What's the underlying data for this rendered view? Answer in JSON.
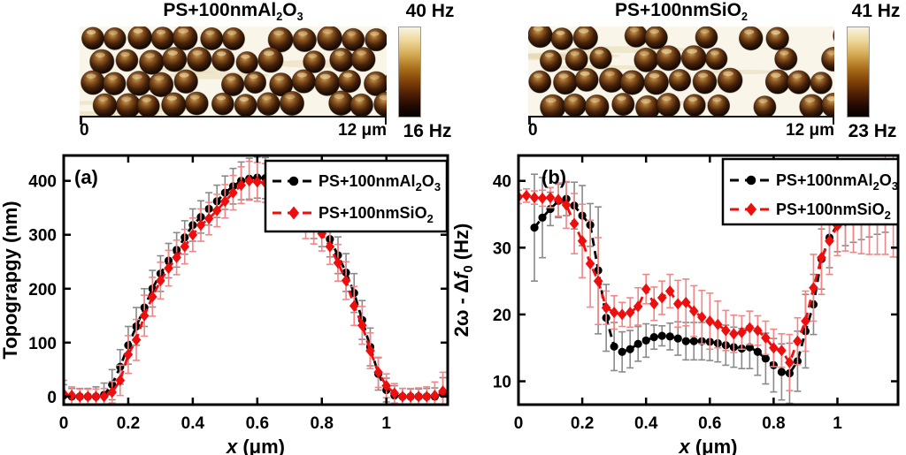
{
  "figure": {
    "afm_panels": [
      {
        "id": "al2o3",
        "title_parts": [
          {
            "t": "PS+100nmAl"
          },
          {
            "t": "2",
            "sub": true
          },
          {
            "t": "O"
          },
          {
            "t": "3",
            "sub": true
          }
        ],
        "colorbar_max": "40 Hz",
        "colorbar_min": "16 Hz",
        "scale_zero": "0",
        "scale_end": "12 μm"
      },
      {
        "id": "sio2",
        "title_parts": [
          {
            "t": "PS+100nmSiO"
          },
          {
            "t": "2",
            "sub": true
          }
        ],
        "colorbar_max": "41 Hz",
        "colorbar_min": "23 Hz",
        "scale_zero": "0",
        "scale_end": "12 μm"
      }
    ],
    "colors": {
      "series_black": "#000000",
      "series_red": "#ee0e0e",
      "err_black": "#8a8a8a",
      "err_red": "#f28585",
      "afm_background": "#f9f5e8",
      "colorbar_top": "#f8f3e1",
      "colorbar_bottom": "#060100"
    }
  },
  "chart_data": [
    {
      "type": "line",
      "panel_label": "(a)",
      "xlabel_parts": [
        {
          "t": "x",
          "italic": true
        },
        {
          "t": " (μm)"
        }
      ],
      "ylabel_parts": [
        {
          "t": "Topograpgy (nm)"
        }
      ],
      "xlim": [
        0,
        1.19
      ],
      "ylim": [
        -15,
        447
      ],
      "xticks": [
        0,
        0.2,
        0.4,
        0.6,
        0.8,
        1
      ],
      "xtick_labels": [
        "0",
        "0.2",
        "0.4",
        "0.6",
        "0.8",
        "1"
      ],
      "yticks": [
        0,
        100,
        200,
        300,
        400
      ],
      "ytick_labels": [
        "0",
        "100",
        "200",
        "300",
        "400"
      ],
      "grid": false,
      "legend_position": "top-right",
      "series": [
        {
          "name": "al2o3",
          "label_parts": [
            {
              "t": "PS+100nmAl"
            },
            {
              "t": "2",
              "sub": true
            },
            {
              "t": "O"
            },
            {
              "t": "3",
              "sub": true
            }
          ],
          "color": "#000000",
          "err_color": "#8a8a8a",
          "marker": "circle",
          "line": "dashed",
          "x": [
            0,
            0.025,
            0.05,
            0.075,
            0.1,
            0.125,
            0.15,
            0.175,
            0.2,
            0.225,
            0.25,
            0.275,
            0.3,
            0.325,
            0.35,
            0.375,
            0.4,
            0.425,
            0.45,
            0.475,
            0.5,
            0.525,
            0.55,
            0.575,
            0.6,
            0.625,
            0.65,
            0.675,
            0.7,
            0.725,
            0.75,
            0.775,
            0.8,
            0.825,
            0.85,
            0.875,
            0.9,
            0.925,
            0.95,
            0.975,
            1.0,
            1.025,
            1.05,
            1.075,
            1.1,
            1.125,
            1.15,
            1.175
          ],
          "y": [
            2,
            0,
            0,
            0,
            0,
            3,
            22,
            55,
            95,
            130,
            165,
            200,
            228,
            252,
            272,
            295,
            318,
            333,
            348,
            362,
            378,
            390,
            400,
            404,
            406,
            405,
            400,
            392,
            378,
            360,
            342,
            325,
            310,
            292,
            262,
            230,
            192,
            142,
            92,
            42,
            12,
            2,
            0,
            0,
            0,
            0,
            0,
            5
          ],
          "err": [
            20,
            15,
            15,
            15,
            18,
            22,
            28,
            32,
            35,
            35,
            35,
            34,
            33,
            32,
            32,
            31,
            30,
            30,
            30,
            30,
            31,
            33,
            35,
            38,
            38,
            38,
            37,
            36,
            35,
            34,
            33,
            32,
            32,
            33,
            34,
            35,
            36,
            36,
            35,
            30,
            22,
            18,
            15,
            14,
            14,
            15,
            16,
            30
          ]
        },
        {
          "name": "sio2",
          "label_parts": [
            {
              "t": "PS+100nmSiO"
            },
            {
              "t": "2",
              "sub": true
            }
          ],
          "color": "#ee0e0e",
          "err_color": "#f28585",
          "marker": "diamond",
          "line": "dashed",
          "x": [
            0,
            0.025,
            0.05,
            0.075,
            0.1,
            0.125,
            0.15,
            0.175,
            0.2,
            0.225,
            0.25,
            0.275,
            0.3,
            0.325,
            0.35,
            0.375,
            0.4,
            0.425,
            0.45,
            0.475,
            0.5,
            0.525,
            0.55,
            0.575,
            0.6,
            0.625,
            0.65,
            0.675,
            0.7,
            0.725,
            0.75,
            0.775,
            0.8,
            0.825,
            0.85,
            0.875,
            0.9,
            0.925,
            0.95,
            0.975,
            1.0,
            1.025,
            1.05,
            1.075,
            1.1,
            1.125,
            1.15,
            1.175
          ],
          "y": [
            5,
            2,
            0,
            0,
            0,
            0,
            8,
            30,
            78,
            105,
            150,
            185,
            215,
            238,
            258,
            278,
            300,
            318,
            330,
            345,
            362,
            378,
            392,
            400,
            398,
            396,
            392,
            383,
            368,
            348,
            325,
            315,
            302,
            278,
            248,
            215,
            168,
            132,
            85,
            45,
            20,
            6,
            0,
            0,
            0,
            0,
            2,
            10
          ],
          "err": [
            25,
            16,
            14,
            14,
            14,
            15,
            20,
            28,
            35,
            38,
            38,
            36,
            34,
            33,
            32,
            32,
            31,
            30,
            30,
            30,
            31,
            32,
            34,
            36,
            36,
            36,
            35,
            34,
            33,
            33,
            32,
            32,
            32,
            33,
            34,
            35,
            36,
            35,
            33,
            28,
            22,
            18,
            15,
            15,
            16,
            18,
            25,
            35
          ]
        }
      ]
    },
    {
      "type": "line",
      "panel_label": "(b)",
      "xlabel_parts": [
        {
          "t": "x",
          "italic": true
        },
        {
          "t": " (μm)"
        }
      ],
      "ylabel_parts": [
        {
          "t": "2ω - Δ"
        },
        {
          "t": "f",
          "italic": true
        },
        {
          "t": "0",
          "sub": true
        },
        {
          "t": " (Hz)"
        }
      ],
      "xlim": [
        0,
        1.19
      ],
      "ylim": [
        6.5,
        43.8
      ],
      "xticks": [
        0,
        0.2,
        0.4,
        0.6,
        0.8,
        1
      ],
      "xtick_labels": [
        "0",
        "0.2",
        "0.4",
        "0.6",
        "0.8",
        "1"
      ],
      "yticks": [
        10,
        20,
        30,
        40
      ],
      "ytick_labels": [
        "10",
        "20",
        "30",
        "40"
      ],
      "grid": false,
      "legend_position": "top-right",
      "series": [
        {
          "name": "al2o3",
          "label_parts": [
            {
              "t": "PS+100nmAl"
            },
            {
              "t": "2",
              "sub": true
            },
            {
              "t": "O"
            },
            {
              "t": "3",
              "sub": true
            }
          ],
          "color": "#000000",
          "err_color": "#8a8a8a",
          "marker": "circle",
          "line": "dashed",
          "x": [
            0.05,
            0.075,
            0.1,
            0.125,
            0.15,
            0.175,
            0.2,
            0.225,
            0.25,
            0.275,
            0.3,
            0.325,
            0.35,
            0.375,
            0.4,
            0.425,
            0.45,
            0.475,
            0.5,
            0.525,
            0.55,
            0.575,
            0.6,
            0.625,
            0.65,
            0.675,
            0.7,
            0.725,
            0.75,
            0.775,
            0.8,
            0.825,
            0.85,
            0.875,
            0.9,
            0.925,
            0.95,
            0.975,
            1.0,
            1.025,
            1.05,
            1.075,
            1.1,
            1.125,
            1.15,
            1.175
          ],
          "y": [
            33,
            34.5,
            35.8,
            37,
            37.3,
            36.3,
            34.8,
            33.4,
            26.6,
            19.5,
            15.2,
            14.4,
            14.8,
            15.6,
            16.1,
            16.6,
            16.8,
            16.7,
            16.4,
            16,
            16,
            16,
            15.9,
            15.7,
            15.4,
            15.1,
            14.9,
            15.1,
            14.4,
            13.4,
            12.4,
            11.4,
            11.2,
            13,
            17.5,
            21.5,
            28.3,
            31.5,
            33.4,
            34.3,
            34.8,
            35.2,
            35.6,
            36.2,
            36.8,
            37.8
          ],
          "err": [
            8,
            6,
            2.5,
            2.5,
            2.5,
            3.5,
            4.5,
            3.2,
            9.5,
            5,
            3.6,
            3,
            2.8,
            2.6,
            2.5,
            1.8,
            1.5,
            2,
            2.5,
            2.8,
            2.8,
            2.8,
            2.8,
            2.8,
            3,
            3,
            3,
            3.2,
            3.5,
            3.8,
            4,
            4.2,
            4.5,
            4.5,
            5.5,
            4.5,
            4.5,
            4.5,
            4,
            4,
            4,
            4,
            4,
            4.2,
            4.5,
            3
          ]
        },
        {
          "name": "sio2",
          "label_parts": [
            {
              "t": "PS+100nmSiO"
            },
            {
              "t": "2",
              "sub": true
            }
          ],
          "color": "#ee0e0e",
          "err_color": "#f28585",
          "marker": "diamond",
          "line": "dashed",
          "x": [
            0,
            0.025,
            0.05,
            0.075,
            0.1,
            0.125,
            0.15,
            0.175,
            0.2,
            0.225,
            0.25,
            0.275,
            0.3,
            0.325,
            0.35,
            0.375,
            0.4,
            0.425,
            0.45,
            0.475,
            0.5,
            0.525,
            0.55,
            0.575,
            0.6,
            0.625,
            0.65,
            0.675,
            0.7,
            0.725,
            0.75,
            0.775,
            0.8,
            0.825,
            0.85,
            0.875,
            0.9,
            0.925,
            0.95,
            0.975,
            1.0,
            1.025,
            1.05,
            1.075,
            1.1,
            1.125,
            1.15,
            1.175
          ],
          "y": [
            37.6,
            37.8,
            37.5,
            37.4,
            37.5,
            37.2,
            36.4,
            33.6,
            31,
            27.6,
            25,
            21,
            20.3,
            20,
            20.3,
            21.2,
            23.8,
            21.6,
            22.5,
            23.5,
            21.6,
            21.8,
            20.5,
            19.6,
            19,
            18.5,
            17.6,
            17.1,
            17.3,
            18,
            17.6,
            16.5,
            15,
            14.6,
            12.8,
            16,
            19,
            24,
            28.5,
            31,
            33.3,
            34,
            34.3,
            34.6,
            35,
            35.5,
            36.5,
            37.6
          ],
          "err": [
            1,
            1,
            1,
            1.2,
            1.5,
            2.5,
            3.5,
            4.5,
            5.5,
            6.5,
            6.5,
            2.5,
            2.5,
            1.8,
            2.2,
            2.8,
            2.2,
            2.5,
            2.5,
            2.5,
            3.5,
            3.5,
            3.8,
            4,
            4.2,
            3.5,
            3,
            2.8,
            2.5,
            2.5,
            2.2,
            2.5,
            2.8,
            2.5,
            4.2,
            3.5,
            4.5,
            5,
            5.5,
            5,
            4.5,
            4.5,
            5,
            5.5,
            6,
            6.5,
            7.5,
            9
          ]
        }
      ]
    }
  ]
}
